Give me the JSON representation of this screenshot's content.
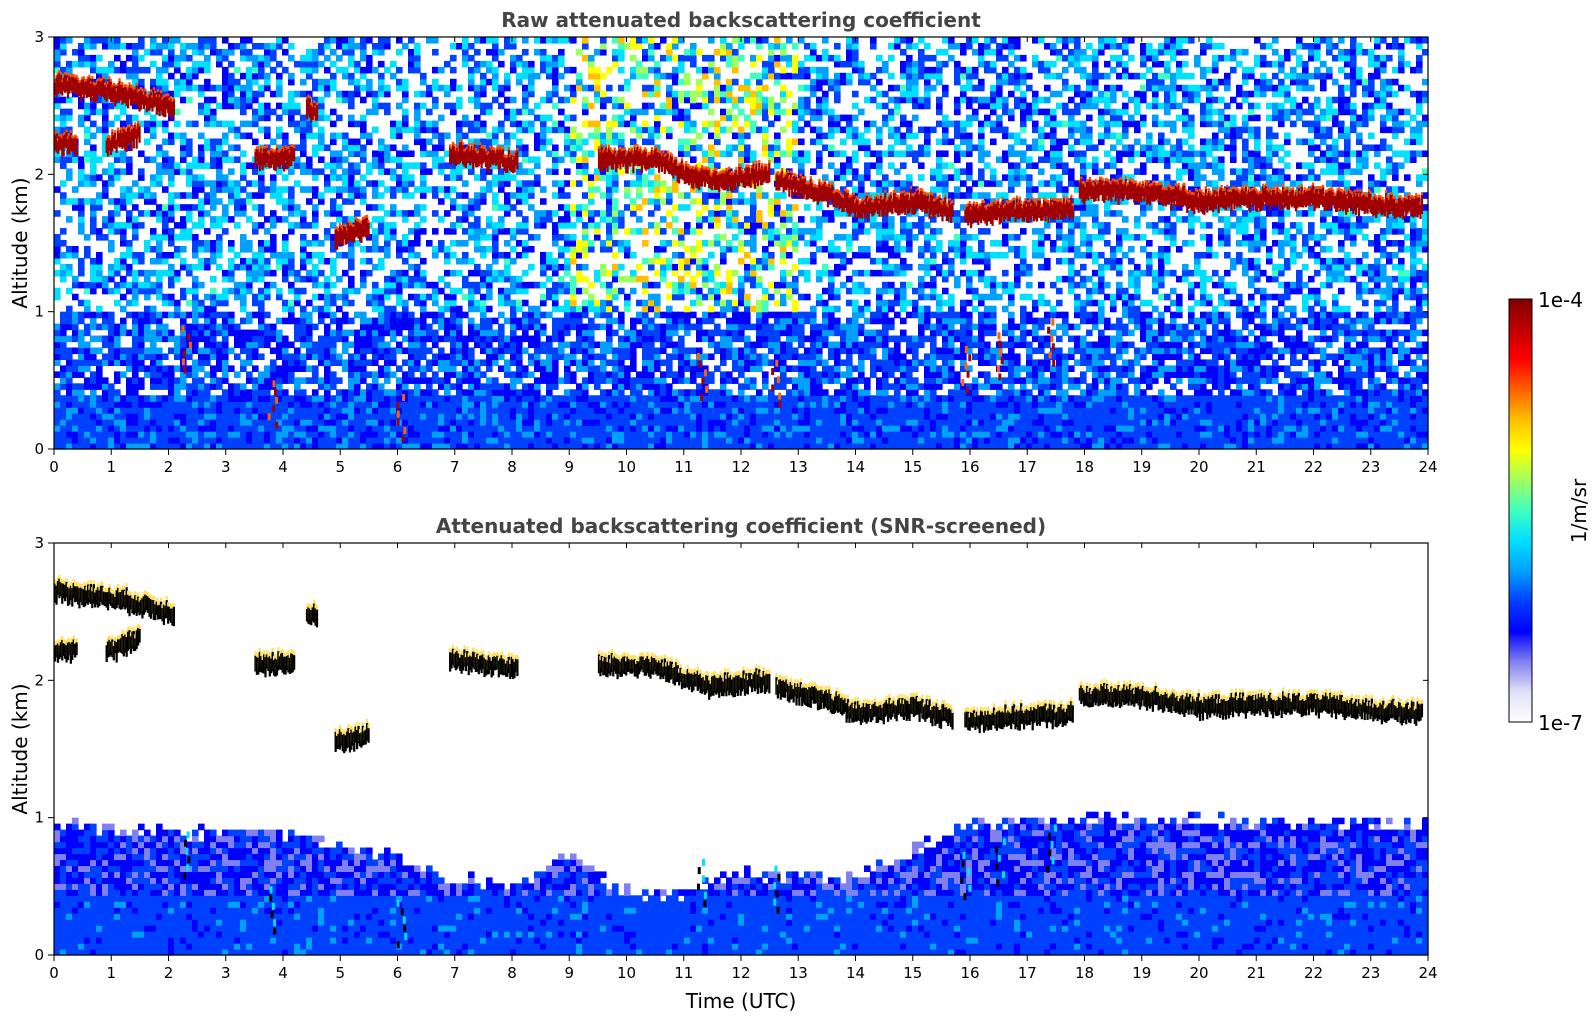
{
  "chart_data": [
    {
      "type": "heatmap",
      "title": "Raw attenuated backscattering coefficient",
      "xlabel": "",
      "ylabel": "Altitude (km)",
      "xlim": [
        0,
        24
      ],
      "ylim": [
        0,
        3
      ],
      "xticks": [
        "0",
        "1",
        "2",
        "3",
        "4",
        "5",
        "6",
        "7",
        "8",
        "9",
        "10",
        "11",
        "12",
        "13",
        "14",
        "15",
        "16",
        "17",
        "18",
        "19",
        "20",
        "21",
        "22",
        "23",
        "24"
      ],
      "yticks": [
        "0",
        "1",
        "2",
        "3"
      ],
      "grid": false,
      "screened": false,
      "cloud_layers": [
        {
          "t": [
            0.0,
            1.2,
            2.1
          ],
          "h": [
            2.65,
            2.58,
            2.48
          ]
        },
        {
          "t": [
            0.0,
            0.4
          ],
          "h": [
            2.22,
            2.22
          ]
        },
        {
          "t": [
            0.9,
            1.5
          ],
          "h": [
            2.2,
            2.3
          ]
        },
        {
          "t": [
            3.5,
            4.2
          ],
          "h": [
            2.12,
            2.12
          ]
        },
        {
          "t": [
            4.4,
            4.6
          ],
          "h": [
            2.48,
            2.45
          ]
        },
        {
          "t": [
            4.9,
            5.5
          ],
          "h": [
            1.55,
            1.6
          ]
        },
        {
          "t": [
            6.9,
            8.1
          ],
          "h": [
            2.15,
            2.08
          ]
        },
        {
          "t": [
            9.5,
            10.5,
            11.0,
            11.5,
            12.5
          ],
          "h": [
            2.1,
            2.1,
            2.0,
            1.95,
            2.0
          ]
        },
        {
          "t": [
            12.6,
            13.5,
            14.0,
            15.0,
            15.7
          ],
          "h": [
            1.95,
            1.85,
            1.75,
            1.8,
            1.72
          ]
        },
        {
          "t": [
            15.9,
            16.5,
            17.8
          ],
          "h": [
            1.7,
            1.72,
            1.75
          ]
        },
        {
          "t": [
            17.9,
            19.0,
            20.0,
            21.0,
            22.0,
            23.0,
            23.9
          ],
          "h": [
            1.88,
            1.88,
            1.8,
            1.82,
            1.82,
            1.78,
            1.75
          ]
        }
      ],
      "low_cloud_features": [
        {
          "t": 2.3,
          "h": 0.9
        },
        {
          "t": 3.8,
          "h": 0.5
        },
        {
          "t": 6.05,
          "h": 0.4
        },
        {
          "t": 11.3,
          "h": 0.7
        },
        {
          "t": 12.6,
          "h": 0.65
        },
        {
          "t": 15.9,
          "h": 0.75
        },
        {
          "t": 16.5,
          "h": 0.85
        },
        {
          "t": 17.4,
          "h": 0.95
        }
      ]
    },
    {
      "type": "heatmap",
      "title": "Attenuated backscattering coefficient (SNR-screened)",
      "xlabel": "Time (UTC)",
      "ylabel": "Altitude (km)",
      "xlim": [
        0,
        24
      ],
      "ylim": [
        0,
        3
      ],
      "xticks": [
        "0",
        "1",
        "2",
        "3",
        "4",
        "5",
        "6",
        "7",
        "8",
        "9",
        "10",
        "11",
        "12",
        "13",
        "14",
        "15",
        "16",
        "17",
        "18",
        "19",
        "20",
        "21",
        "22",
        "23",
        "24"
      ],
      "yticks": [
        "0",
        "1",
        "2",
        "3"
      ],
      "grid": false,
      "screened": true,
      "boundary_layer_top": [
        {
          "t": 0,
          "h": 0.95
        },
        {
          "t": 2,
          "h": 0.9
        },
        {
          "t": 4,
          "h": 0.9
        },
        {
          "t": 6,
          "h": 0.7
        },
        {
          "t": 7,
          "h": 0.55
        },
        {
          "t": 8,
          "h": 0.5
        },
        {
          "t": 9,
          "h": 0.75
        },
        {
          "t": 10,
          "h": 0.45
        },
        {
          "t": 11,
          "h": 0.45
        },
        {
          "t": 12,
          "h": 0.6
        },
        {
          "t": 14,
          "h": 0.55
        },
        {
          "t": 15,
          "h": 0.75
        },
        {
          "t": 16,
          "h": 0.95
        },
        {
          "t": 18,
          "h": 1.0
        },
        {
          "t": 24,
          "h": 0.95
        }
      ]
    }
  ],
  "colorbar": {
    "label": "1/m/sr",
    "max_label": "1e-4",
    "min_label": "1e-7",
    "scale": "log",
    "colormap": [
      "#ffffff",
      "#e0e0f8",
      "#8080f0",
      "#0000ff",
      "#0040ff",
      "#00a0ff",
      "#00e0ff",
      "#40ffc0",
      "#a0ff60",
      "#ffff00",
      "#ffc000",
      "#ff6000",
      "#ff0000",
      "#c00000",
      "#800000"
    ]
  }
}
